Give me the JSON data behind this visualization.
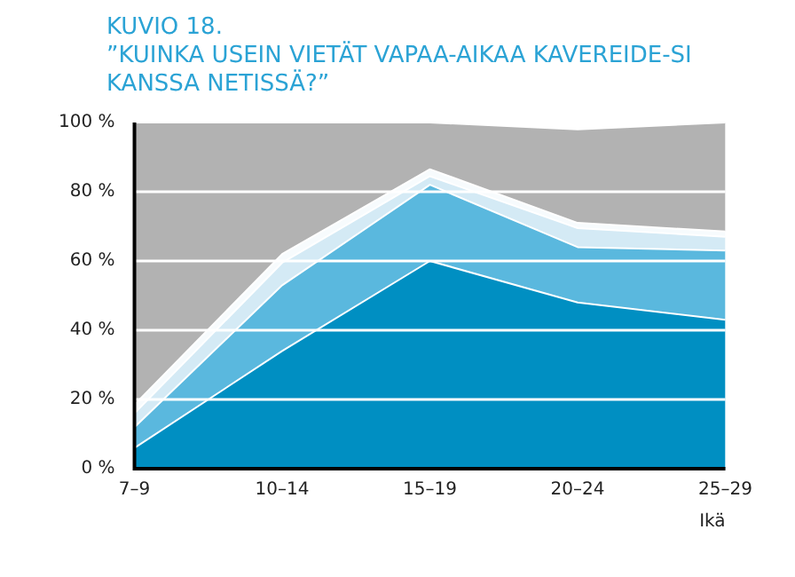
{
  "chart_data": {
    "type": "area",
    "title": "KUVIO 18.",
    "subtitle": "”KUINKA USEIN VIETÄT VAPAA-AIKAA KAVEREIDE-SI KANSSA  NETISSÄ?”",
    "xlabel": "Ikä",
    "categories": [
      "7–9",
      "10–14",
      "15–19",
      "20–24",
      "25–29"
    ],
    "stacked": true,
    "series": [
      {
        "color": "#008fc2",
        "values": [
          6,
          34,
          60,
          48,
          43
        ]
      },
      {
        "color": "#5ab8de",
        "values": [
          6,
          19,
          22,
          16,
          20
        ]
      },
      {
        "color": "#d4eaf5",
        "values": [
          4,
          6.5,
          2.5,
          5.5,
          4
        ]
      },
      {
        "color": "#f7fbfd",
        "values": [
          2.5,
          2.5,
          2,
          1.5,
          1.5
        ]
      },
      {
        "color": "#b2b2b2",
        "values": [
          81.5,
          38,
          13.5,
          27,
          31.5
        ]
      }
    ],
    "ylim": [
      0,
      100
    ],
    "yticks": [
      {
        "value": 0,
        "label": "0 %"
      },
      {
        "value": 20,
        "label": "20 %"
      },
      {
        "value": 40,
        "label": "40 %"
      },
      {
        "value": 60,
        "label": "60 %"
      },
      {
        "value": 80,
        "label": "80 %"
      },
      {
        "value": 100,
        "label": "100 %"
      }
    ],
    "grid": "y",
    "legend": false
  }
}
